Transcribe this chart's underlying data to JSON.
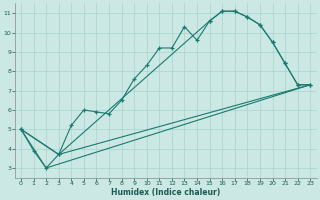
{
  "xlabel": "Humidex (Indice chaleur)",
  "bg_color": "#cce8e4",
  "grid_color": "#a8d4ce",
  "line_color": "#1a7a6e",
  "xlim": [
    -0.5,
    23.5
  ],
  "ylim": [
    2.5,
    11.5
  ],
  "xticks": [
    0,
    1,
    2,
    3,
    4,
    5,
    6,
    7,
    8,
    9,
    10,
    11,
    12,
    13,
    14,
    15,
    16,
    17,
    18,
    19,
    20,
    21,
    22,
    23
  ],
  "yticks": [
    3,
    4,
    5,
    6,
    7,
    8,
    9,
    10,
    11
  ],
  "line1_x": [
    0,
    1,
    2,
    3,
    4,
    5,
    6,
    7,
    8,
    9,
    10,
    11,
    12,
    13,
    14,
    15,
    16,
    17,
    18,
    19,
    20,
    21,
    22,
    23
  ],
  "line1_y": [
    5.0,
    3.9,
    3.0,
    3.7,
    5.2,
    6.0,
    5.9,
    5.8,
    6.5,
    7.6,
    8.3,
    9.2,
    9.2,
    10.3,
    9.6,
    10.6,
    11.1,
    11.1,
    10.8,
    10.4,
    9.5,
    8.4,
    7.3,
    7.3
  ],
  "line2_x": [
    0,
    3,
    15,
    16,
    17,
    18,
    19,
    20,
    21,
    22,
    23
  ],
  "line2_y": [
    5.0,
    3.7,
    10.6,
    11.1,
    11.1,
    10.8,
    10.4,
    9.5,
    8.4,
    7.3,
    7.3
  ],
  "line3_x": [
    0,
    3,
    23
  ],
  "line3_y": [
    5.0,
    3.7,
    7.3
  ],
  "line4_x": [
    0,
    2,
    23
  ],
  "line4_y": [
    5.0,
    3.0,
    7.3
  ]
}
